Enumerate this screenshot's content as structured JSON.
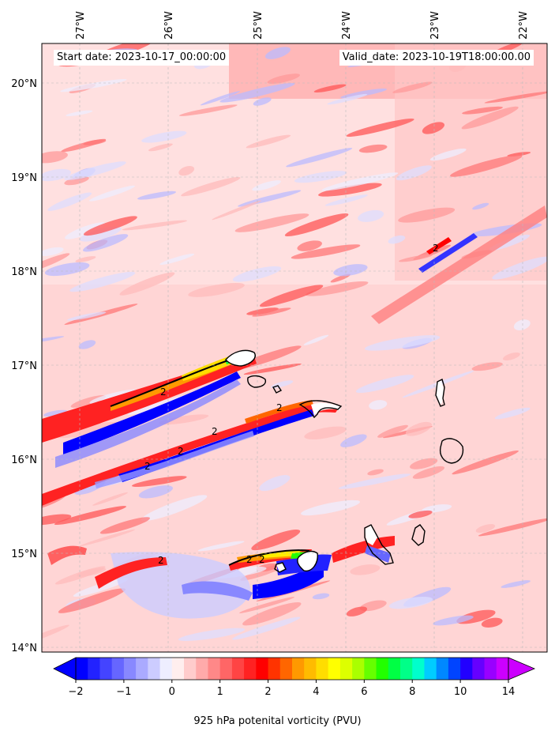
{
  "header": {
    "start_date": "Start date: 2023-10-17_00:00:00",
    "valid_date": "Valid_date: 2023-10-19T18:00:00.00"
  },
  "axes": {
    "lon_labels": [
      "27°W",
      "26°W",
      "25°W",
      "24°W",
      "23°W",
      "22°W"
    ],
    "lat_labels": [
      "20°N",
      "19°N",
      "18°N",
      "17°N",
      "16°N",
      "15°N",
      "14°N"
    ]
  },
  "colorbar": {
    "title": "925 hPa potenital vorticity (PVU)",
    "tick_labels": [
      "−2",
      "−1",
      "0",
      "1",
      "2",
      "4",
      "6",
      "8",
      "10",
      "14"
    ],
    "levels": [
      -2,
      -1.75,
      -1.5,
      -1.25,
      -1,
      -0.75,
      -0.5,
      -0.25,
      0,
      0.25,
      0.5,
      0.75,
      1,
      1.25,
      1.5,
      1.75,
      2,
      2.5,
      3,
      3.5,
      4,
      4.5,
      5,
      5.5,
      6,
      6.5,
      7,
      7.5,
      8,
      8.5,
      9,
      9.5,
      10,
      11,
      12,
      13,
      14
    ],
    "colors": [
      "#0000ff",
      "#2222ff",
      "#4444ff",
      "#6666ff",
      "#8888ff",
      "#aaaaff",
      "#ccccff",
      "#eeeeff",
      "#ffeeee",
      "#ffcccc",
      "#ffaaaa",
      "#ff8888",
      "#ff6666",
      "#ff4444",
      "#ff2222",
      "#ff0000",
      "#ff3300",
      "#ff6600",
      "#ff9900",
      "#ffbb00",
      "#ffdd00",
      "#ffff00",
      "#ddff00",
      "#aaff00",
      "#66ff00",
      "#22ff00",
      "#00ff44",
      "#00ff88",
      "#00ffcc",
      "#00ccff",
      "#0088ff",
      "#0044ff",
      "#2200ff",
      "#6600ff",
      "#9900ff",
      "#cc00ff"
    ],
    "extend": "both"
  },
  "contour_label": "2",
  "map": {
    "lon_range": [
      -27.4,
      -21.8
    ],
    "lat_range": [
      13.95,
      20.42
    ],
    "field": "925 hPa potential vorticity"
  }
}
